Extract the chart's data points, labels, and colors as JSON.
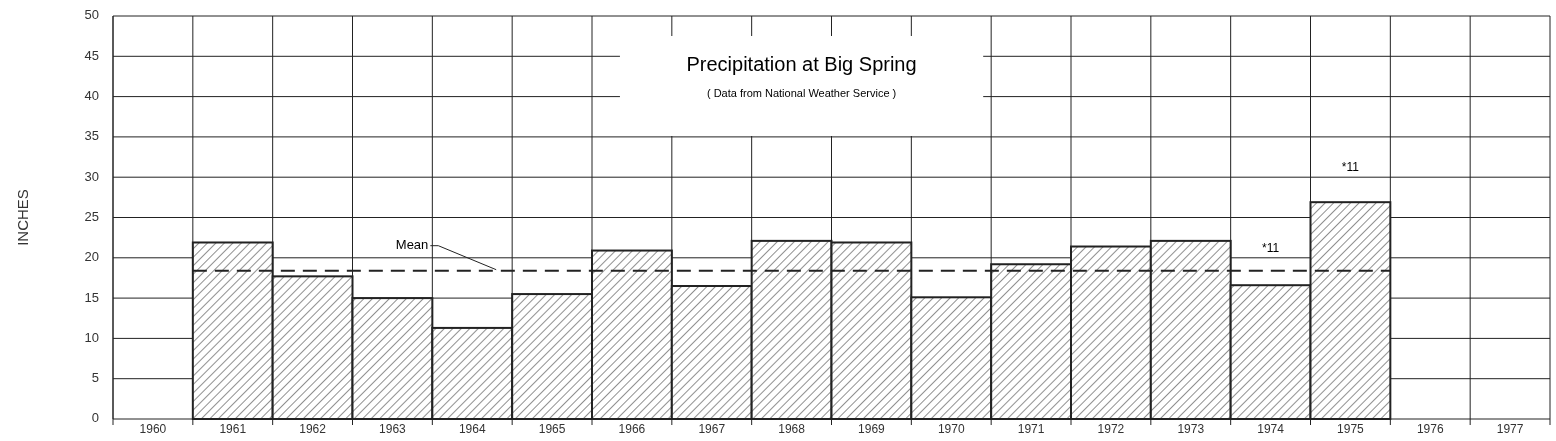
{
  "chart_data": {
    "type": "bar",
    "title": "Precipitation at Big Spring",
    "subtitle": "( Data from National Weather Service )",
    "ylabel": "INCHES",
    "categories": [
      "1960",
      "1961",
      "1962",
      "1963",
      "1964",
      "1965",
      "1966",
      "1967",
      "1968",
      "1969",
      "1970",
      "1971",
      "1972",
      "1973",
      "1974",
      "1975",
      "1976",
      "1977"
    ],
    "values": [
      null,
      21.9,
      17.7,
      15.0,
      11.3,
      15.5,
      20.9,
      16.5,
      22.1,
      21.9,
      15.1,
      19.2,
      21.4,
      22.1,
      16.6,
      26.9,
      null,
      null
    ],
    "color": "#222222",
    "ylim": [
      0,
      50
    ],
    "yticks": [
      0,
      5,
      10,
      15,
      20,
      25,
      30,
      35,
      40,
      45,
      50
    ],
    "grid": true,
    "ref_lines": [
      {
        "axis": "y",
        "value": 18.4,
        "label": "Mean",
        "line_style": "dashed"
      }
    ],
    "annotations": [
      "*11",
      "*11"
    ]
  }
}
